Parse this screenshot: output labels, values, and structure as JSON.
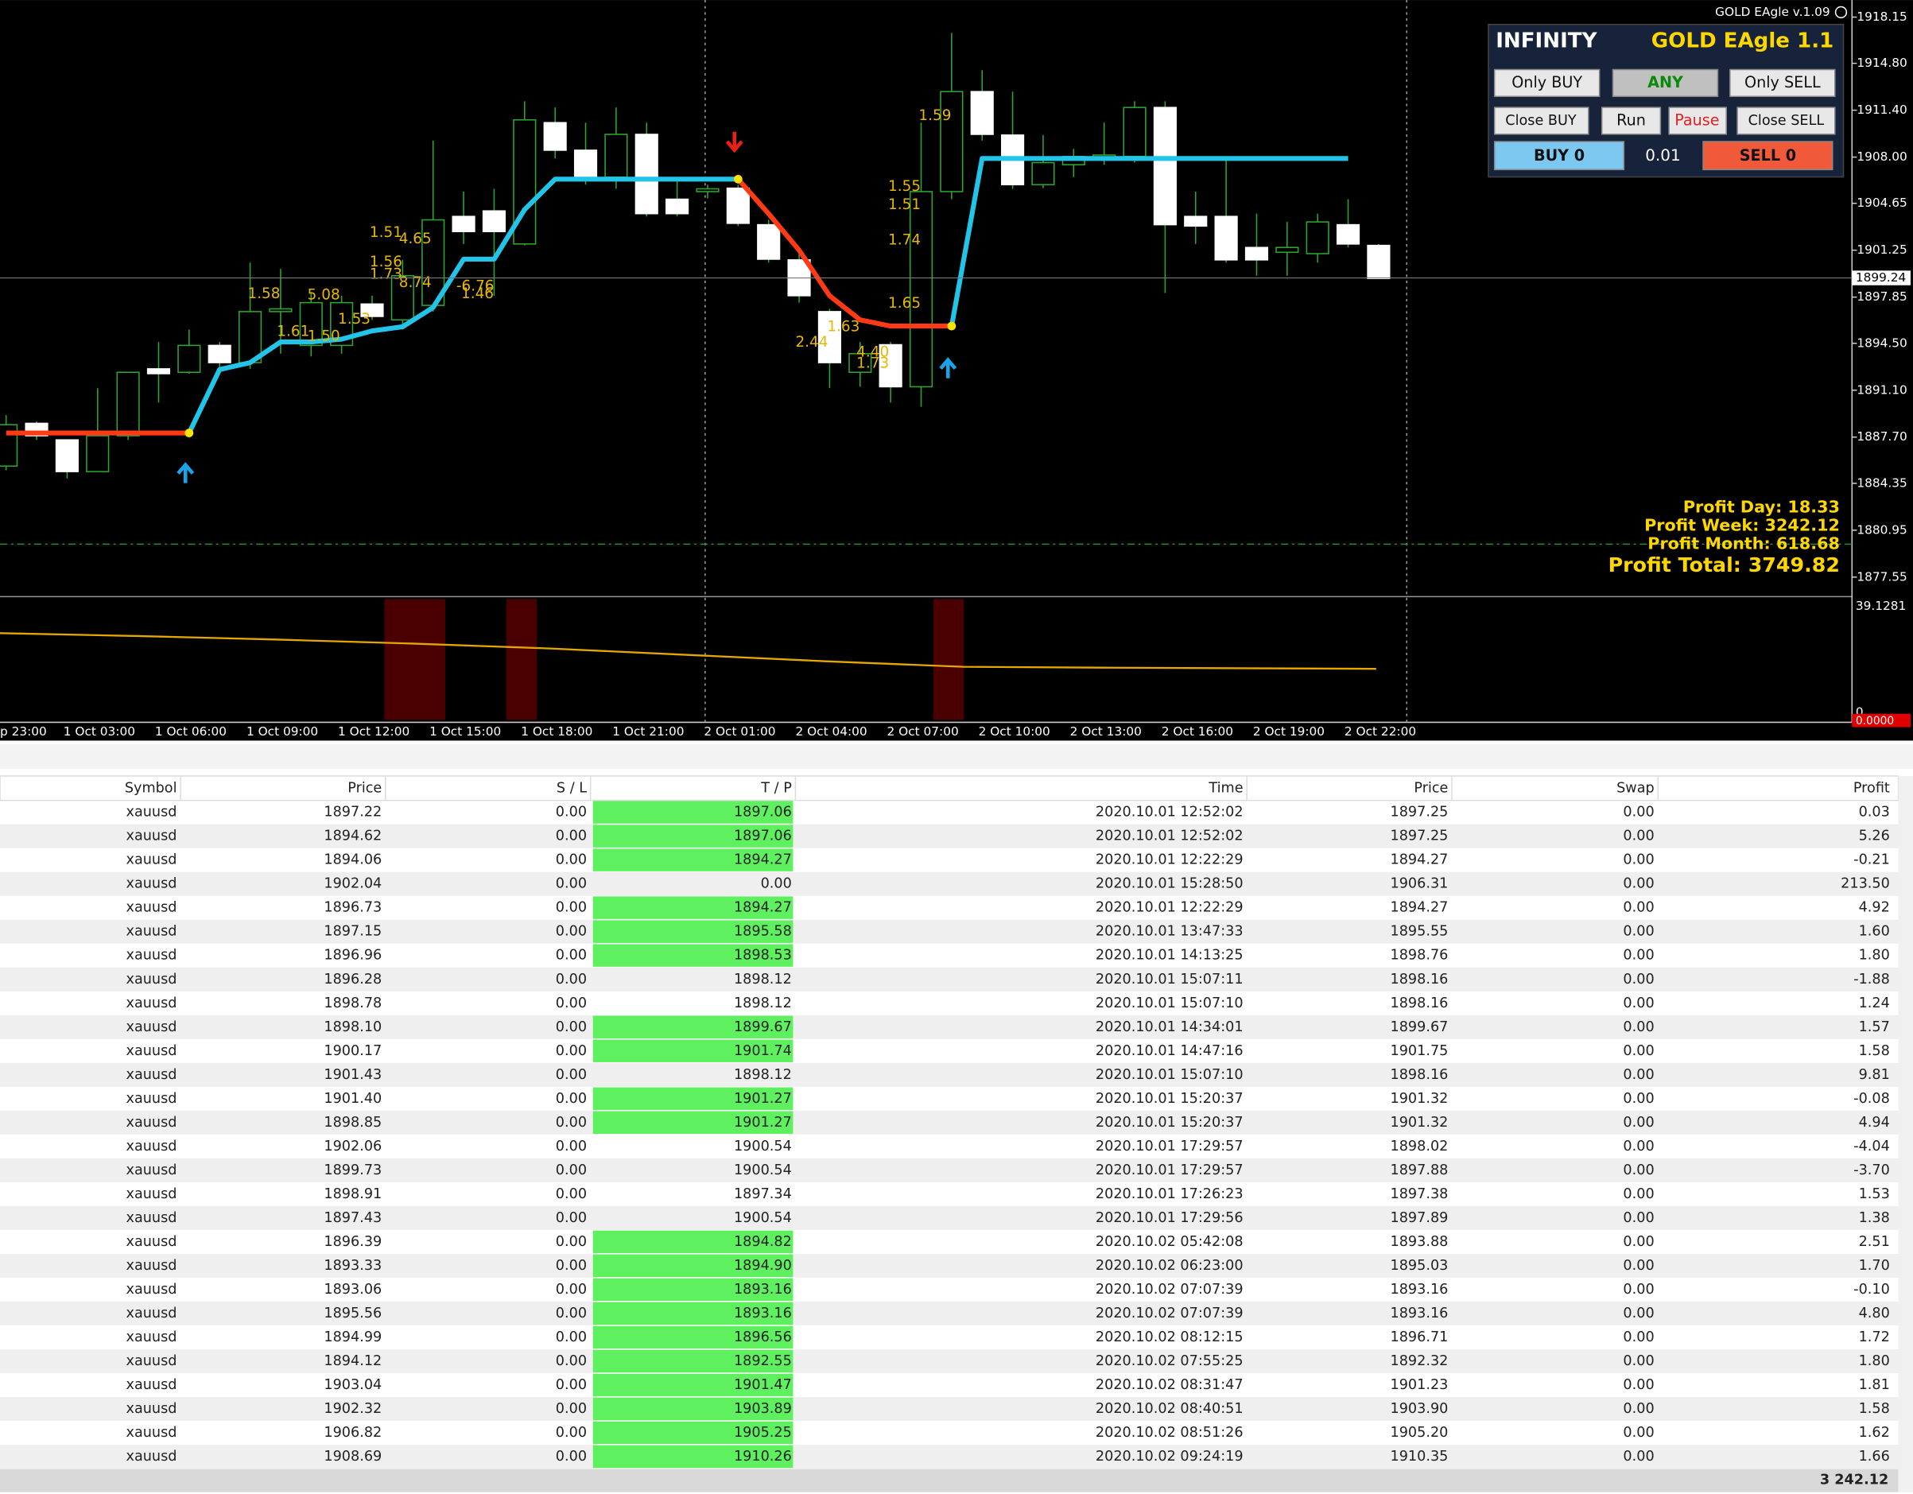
{
  "window": {
    "title": "GOLD EAgle v.1.09"
  },
  "chart": {
    "ylim": [
      1877.55,
      1918.15
    ],
    "yticks": [
      1918.15,
      {
        "value": 1914.8,
        "label": "1914.80"
      },
      {
        "value": 1911.4,
        "label": "1911.40"
      },
      {
        "value": 1908,
        "label": "1908.00"
      },
      1904.65,
      1901.25,
      1897.85,
      {
        "value": 1894.5,
        "label": "1894.50"
      },
      {
        "value": 1891.1,
        "label": "1891.10"
      },
      {
        "value": 1887.7,
        "label": "1887.70"
      },
      1884.35,
      1880.95,
      1877.55
    ],
    "current_price": 1899.24,
    "time_labels": [
      "p 23:00",
      "1 Oct 03:00",
      "1 Oct 06:00",
      "1 Oct 09:00",
      "1 Oct 12:00",
      "1 Oct 15:00",
      "1 Oct 18:00",
      "1 Oct 21:00",
      "2 Oct 01:00",
      "2 Oct 04:00",
      "2 Oct 07:00",
      "2 Oct 10:00",
      "2 Oct 13:00",
      "2 Oct 16:00",
      "2 Oct 19:00",
      "2 Oct 22:00"
    ],
    "candles": [
      [
        1885.6,
        1889.3,
        1885.3,
        1888.6
      ],
      [
        1888.7,
        1888.85,
        1887.5,
        1887.8
      ],
      [
        1887.5,
        1887.5,
        1884.7,
        1885.2
      ],
      [
        1885.2,
        1891.25,
        1885.2,
        1887.8
      ],
      [
        1887.8,
        1892.4,
        1887.5,
        1892.4
      ],
      [
        1892.65,
        1894.6,
        1890.2,
        1892.3
      ],
      [
        1892.4,
        1895.5,
        1892.3,
        1894.35
      ],
      [
        1894.35,
        1894.6,
        1892.65,
        1893.1
      ],
      [
        1893.1,
        1900.35,
        1892.65,
        1896.8
      ],
      [
        1896.8,
        1899.9,
        1893.75,
        1897
      ],
      [
        1894.35,
        1898.15,
        1893.55,
        1897.45
      ],
      [
        1894.35,
        1897.95,
        1893.75,
        1897.45
      ],
      [
        1897.35,
        1897.95,
        1896.2,
        1896.45
      ],
      [
        1896.2,
        1900.55,
        1895.5,
        1899.4
      ],
      [
        1897.25,
        1909.2,
        1896.8,
        1903.45
      ],
      [
        1903.7,
        1905.5,
        1901.7,
        1902.6
      ],
      [
        1904.1,
        1905.7,
        1897.95,
        1902.6
      ],
      [
        1901.7,
        1912.05,
        1901.6,
        1910.7
      ],
      [
        1910.5,
        1911.6,
        1907.9,
        1908.5
      ],
      [
        1908.5,
        1910.5,
        1906,
        1906.55
      ],
      [
        1906.55,
        1911.6,
        1905.7,
        1909.65
      ],
      [
        1909.65,
        1910.5,
        1903.7,
        1903.9
      ],
      [
        1904.95,
        1906.55,
        1903.7,
        1903.9
      ],
      [
        1905.5,
        1906,
        1905,
        1905.7
      ],
      [
        1905.75,
        1906,
        1903,
        1903.2
      ],
      [
        1903.1,
        1903.45,
        1900.35,
        1900.6
      ],
      [
        1900.55,
        1901,
        1897.45,
        1897.95
      ],
      [
        1896.8,
        1897,
        1891.25,
        1893.1
      ],
      [
        1892.4,
        1894.6,
        1891.35,
        1893.75
      ],
      [
        1894.4,
        1894.6,
        1890.2,
        1891.35
      ],
      [
        1891.35,
        1910.5,
        1889.9,
        1905.5
      ],
      [
        1905.5,
        1917,
        1904.95,
        1912.75
      ],
      [
        1912.75,
        1914.3,
        1909.2,
        1909.65
      ],
      [
        1909.6,
        1912.75,
        1905.7,
        1906
      ],
      [
        1906,
        1909.6,
        1905.75,
        1907.6
      ],
      [
        1907.45,
        1908.6,
        1906.55,
        1908.05
      ],
      [
        1907.9,
        1910.5,
        1907.45,
        1908.15
      ],
      [
        1908.05,
        1912.05,
        1907.6,
        1911.6
      ],
      [
        1911.6,
        1912.05,
        1898.15,
        1903.1
      ],
      [
        1903.7,
        1905.5,
        1901.7,
        1903
      ],
      [
        1903.7,
        1908.05,
        1900.35,
        1900.55
      ],
      [
        1901.45,
        1903.9,
        1899.4,
        1900.55
      ],
      [
        1901.1,
        1903.3,
        1899.4,
        1901.45
      ],
      [
        1901,
        1903.9,
        1900.35,
        1903.3
      ],
      [
        1903.1,
        1904.95,
        1901.45,
        1901.7
      ],
      [
        1901.6,
        1901.7,
        1899.2,
        1899.2
      ]
    ],
    "trend_up": [
      null,
      null,
      null,
      null,
      null,
      null,
      1888.0,
      1892.6,
      1893.1,
      1894.6,
      1894.6,
      1894.8,
      1895.4,
      1895.7,
      1897.1,
      1900.6,
      1900.6,
      1904.2,
      1906.4,
      1906.4,
      1906.4,
      1906.4,
      1906.4,
      1906.4,
      1906.4,
      null,
      null,
      null,
      null,
      null,
      null,
      1895.75,
      1907.9,
      1907.9,
      1907.9,
      1907.9,
      1907.9,
      1907.9,
      1907.9,
      1907.9,
      1907.9,
      1907.9,
      1907.9,
      1907.9,
      1907.9,
      null
    ],
    "trend_down": [
      1888.0,
      1888.0,
      1888.0,
      1888.0,
      1888.0,
      1888.0,
      1888.0,
      null,
      null,
      null,
      null,
      null,
      null,
      null,
      null,
      null,
      null,
      null,
      null,
      null,
      null,
      null,
      null,
      null,
      1906.4,
      1903.9,
      1901.25,
      1897.95,
      1896.2,
      1895.75,
      1895.75,
      1895.75,
      null,
      null,
      null,
      null,
      null,
      null,
      null,
      null,
      null,
      null,
      null,
      null,
      null,
      null
    ],
    "annotations": [
      "1.59",
      "1.55",
      "1.51",
      "1.74",
      "1.65",
      "2.44",
      "1.63",
      "4.40",
      "1.73",
      "1.51",
      "4.65",
      "1.56",
      "1.73",
      "8.74",
      "1.58",
      "5.08",
      "1.61",
      "1.50",
      "1.53",
      "-6.76",
      "1.46"
    ],
    "indicator": {
      "ylim": [
        0,
        39.1281
      ],
      "bottom_label": {
        "value": 0,
        "label": "0.0000"
      },
      "values": [
        29.9,
        28.9,
        27.7,
        26.3,
        24.6,
        22.4,
        20.2,
        18.3,
        18.0,
        17.8,
        17.6
      ]
    }
  },
  "panel": {
    "name": "INFINITY",
    "title": "GOLD EAgle 1.1",
    "buttons": [
      "Only BUY",
      "ANY",
      "Only SELL",
      "Close BUY",
      "Run",
      "Pause",
      "Close SELL",
      "BUY 0",
      "SELL 0"
    ],
    "lot": "0.01"
  },
  "profit": [
    "Profit Day: 18.33",
    "Profit Week: 3242.12",
    "Profit Month: 618.68",
    "Profit Total: 3749.82"
  ],
  "table": {
    "columns": [
      "Symbol",
      "Price",
      "S / L",
      "T / P",
      "Time",
      "Price",
      "Swap",
      "Profit"
    ],
    "rows": [
      [
        "xauusd",
        "1897.22",
        "0.00",
        "1897.06",
        "2020.10.01 12:52:02",
        "1897.25",
        "0.00",
        "0.03"
      ],
      [
        "xauusd",
        "1894.62",
        "0.00",
        "1897.06",
        "2020.10.01 12:52:02",
        "1897.25",
        "0.00",
        "5.26"
      ],
      [
        "xauusd",
        "1894.06",
        "0.00",
        "1894.27",
        "2020.10.01 12:22:29",
        "1894.27",
        "0.00",
        "-0.21"
      ],
      [
        "xauusd",
        "1902.04",
        "0.00",
        "0.00",
        "2020.10.01 15:28:50",
        "1906.31",
        "0.00",
        "213.50"
      ],
      [
        "xauusd",
        "1896.73",
        "0.00",
        "1894.27",
        "2020.10.01 12:22:29",
        "1894.27",
        "0.00",
        "4.92"
      ],
      [
        "xauusd",
        "1897.15",
        "0.00",
        "1895.58",
        "2020.10.01 13:47:33",
        "1895.55",
        "0.00",
        "1.60"
      ],
      [
        "xauusd",
        "1896.96",
        "0.00",
        "1898.53",
        "2020.10.01 14:13:25",
        "1898.76",
        "0.00",
        "1.80"
      ],
      [
        "xauusd",
        "1896.28",
        "0.00",
        "1898.12",
        "2020.10.01 15:07:11",
        "1898.16",
        "0.00",
        "-1.88"
      ],
      [
        "xauusd",
        "1898.78",
        "0.00",
        "1898.12",
        "2020.10.01 15:07:10",
        "1898.16",
        "0.00",
        "1.24"
      ],
      [
        "xauusd",
        "1898.10",
        "0.00",
        "1899.67",
        "2020.10.01 14:34:01",
        "1899.67",
        "0.00",
        "1.57"
      ],
      [
        "xauusd",
        "1900.17",
        "0.00",
        "1901.74",
        "2020.10.01 14:47:16",
        "1901.75",
        "0.00",
        "1.58"
      ],
      [
        "xauusd",
        "1901.43",
        "0.00",
        "1898.12",
        "2020.10.01 15:07:10",
        "1898.16",
        "0.00",
        "9.81"
      ],
      [
        "xauusd",
        "1901.40",
        "0.00",
        "1901.27",
        "2020.10.01 15:20:37",
        "1901.32",
        "0.00",
        "-0.08"
      ],
      [
        "xauusd",
        "1898.85",
        "0.00",
        "1901.27",
        "2020.10.01 15:20:37",
        "1901.32",
        "0.00",
        "4.94"
      ],
      [
        "xauusd",
        "1902.06",
        "0.00",
        "1900.54",
        "2020.10.01 17:29:57",
        "1898.02",
        "0.00",
        "-4.04"
      ],
      [
        "xauusd",
        "1899.73",
        "0.00",
        "1900.54",
        "2020.10.01 17:29:57",
        "1897.88",
        "0.00",
        "-3.70"
      ],
      [
        "xauusd",
        "1898.91",
        "0.00",
        "1897.34",
        "2020.10.01 17:26:23",
        "1897.38",
        "0.00",
        "1.53"
      ],
      [
        "xauusd",
        "1897.43",
        "0.00",
        "1900.54",
        "2020.10.01 17:29:56",
        "1897.89",
        "0.00",
        "1.38"
      ],
      [
        "xauusd",
        "1896.39",
        "0.00",
        "1894.82",
        "2020.10.02 05:42:08",
        "1893.88",
        "0.00",
        "2.51"
      ],
      [
        "xauusd",
        "1893.33",
        "0.00",
        "1894.90",
        "2020.10.02 06:23:00",
        "1895.03",
        "0.00",
        "1.70"
      ],
      [
        "xauusd",
        "1893.06",
        "0.00",
        "1893.16",
        "2020.10.02 07:07:39",
        "1893.16",
        "0.00",
        "-0.10"
      ],
      [
        "xauusd",
        "1895.56",
        "0.00",
        "1893.16",
        "2020.10.02 07:07:39",
        "1893.16",
        "0.00",
        "4.80"
      ],
      [
        "xauusd",
        "1894.99",
        "0.00",
        "1896.56",
        "2020.10.02 08:12:15",
        "1896.71",
        "0.00",
        "1.72"
      ],
      [
        "xauusd",
        "1894.12",
        "0.00",
        "1892.55",
        "2020.10.02 07:55:25",
        "1892.32",
        "0.00",
        "1.80"
      ],
      [
        "xauusd",
        "1903.04",
        "0.00",
        "1901.47",
        "2020.10.02 08:31:47",
        "1901.23",
        "0.00",
        "1.81"
      ],
      [
        "xauusd",
        "1902.32",
        "0.00",
        "1903.89",
        "2020.10.02 08:40:51",
        "1903.90",
        "0.00",
        "1.58"
      ],
      [
        "xauusd",
        "1906.82",
        "0.00",
        "1905.25",
        "2020.10.02 08:51:26",
        "1905.20",
        "0.00",
        "1.62"
      ],
      [
        "xauusd",
        "1908.69",
        "0.00",
        "1910.26",
        "2020.10.02 09:24:19",
        "1910.35",
        "0.00",
        "1.66"
      ]
    ],
    "tp_highlight": [
      true,
      true,
      true,
      false,
      true,
      true,
      true,
      false,
      false,
      true,
      true,
      false,
      true,
      true,
      false,
      false,
      false,
      false,
      true,
      true,
      true,
      true,
      true,
      true,
      true,
      true,
      true,
      true
    ],
    "total": "3 242.12"
  }
}
